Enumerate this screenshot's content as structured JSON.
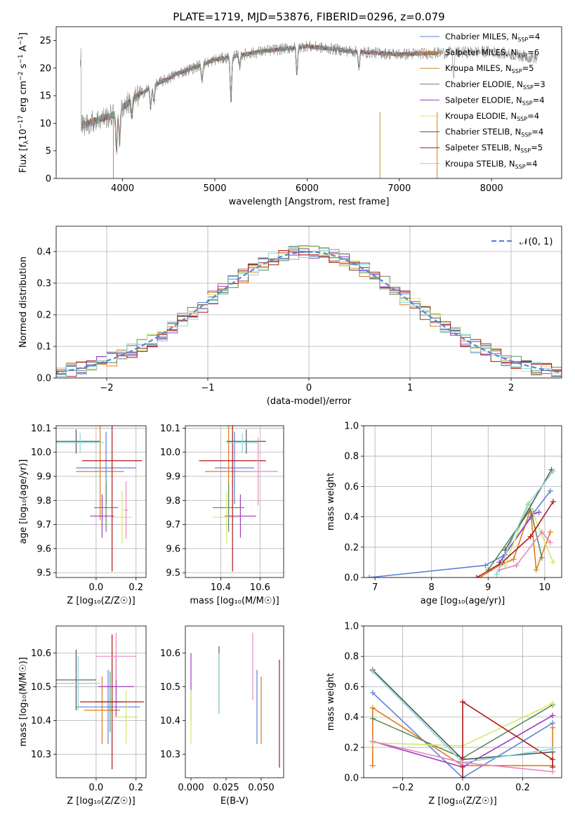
{
  "colors": {
    "Chabrier MILES": "#5b84d6",
    "Salpeter MILES": "#e07b1b",
    "Kroupa MILES": "#c98a2a",
    "Chabrier ELODIE": "#5a8a5a",
    "Salpeter ELODIE": "#9b3cc0",
    "Kroupa ELODIE": "#d6e86b",
    "Chabrier STELIB": "#555555",
    "Salpeter STELIB": "#b01818",
    "Kroupa STELIB": "#86d6d6",
    "pink": "#e888c0",
    "gray": "#808080",
    "normal": "#5b84d6"
  },
  "chart_data": [
    {
      "type": "line",
      "id": "spectrum",
      "title": "PLATE=1719, MJD=53876, FIBERID=0296, z=0.079",
      "xlabel": "wavelength [Angstrom, rest frame]",
      "ylabel_parts": [
        "Flux [f",
        "λ",
        "10",
        "−17",
        " erg cm",
        "−2",
        " s",
        "−1",
        " A",
        "−1",
        "]"
      ],
      "xlim": [
        3280,
        8760
      ],
      "ylim": [
        0,
        27.5
      ],
      "xticks": [
        4000,
        5000,
        6000,
        7000,
        8000
      ],
      "yticks": [
        0,
        5,
        10,
        15,
        20,
        25
      ],
      "legend_position": "right",
      "continuum": [
        [
          3550,
          9.5
        ],
        [
          3700,
          10.5
        ],
        [
          3900,
          11.5
        ],
        [
          4000,
          13
        ],
        [
          4300,
          16.5
        ],
        [
          4600,
          19
        ],
        [
          5000,
          21.5
        ],
        [
          5500,
          23
        ],
        [
          6000,
          24
        ],
        [
          6500,
          23
        ],
        [
          7000,
          22.5
        ],
        [
          7500,
          22.8
        ],
        [
          8000,
          23
        ],
        [
          8500,
          21.8
        ]
      ],
      "legend": [
        {
          "model": "Chabrier MILES",
          "text": "Chabrier MILES, N",
          "sub": "SSP",
          "eq": "=4"
        },
        {
          "model": "Salpeter MILES",
          "text": "Salpeter MILES, N",
          "sub": "SSP",
          "eq": "=6"
        },
        {
          "model": "Kroupa MILES",
          "text": "Kroupa MILES, N",
          "sub": "SSP",
          "eq": "=5"
        },
        {
          "model": "Chabrier ELODIE",
          "text": "Chabrier ELODIE, N",
          "sub": "SSP",
          "eq": "=3"
        },
        {
          "model": "Salpeter ELODIE",
          "text": "Salpeter ELODIE, N",
          "sub": "SSP",
          "eq": "=4"
        },
        {
          "model": "Kroupa ELODIE",
          "text": "Kroupa ELODIE, N",
          "sub": "SSP",
          "eq": "=4"
        },
        {
          "model": "Chabrier STELIB",
          "text": "Chabrier STELIB, N",
          "sub": "SSP",
          "eq": "=4"
        },
        {
          "model": "Salpeter STELIB",
          "text": "Salpeter STELIB, N",
          "sub": "SSP",
          "eq": "=5"
        },
        {
          "model": "Kroupa STELIB",
          "text": "Kroupa STELIB, N",
          "sub": "SSP",
          "eq": "=4"
        }
      ],
      "spikes": [
        {
          "x": 3900,
          "color": "Kroupa MILES"
        },
        {
          "x": 6790,
          "color": "Kroupa MILES"
        },
        {
          "x": 7410,
          "color": "Salpeter MILES"
        }
      ]
    },
    {
      "type": "histogram",
      "id": "residuals",
      "xlabel": "(data-model)/error",
      "ylabel": "Normed distribution",
      "xlim": [
        -2.5,
        2.5
      ],
      "ylim": [
        0,
        0.48
      ],
      "xticks": [
        -2,
        -1,
        0,
        1,
        2
      ],
      "yticks": [
        0.0,
        0.1,
        0.2,
        0.3,
        0.4
      ],
      "grid": true,
      "legend_label": "𝒩(0, 1)",
      "legend_position": "top-right",
      "bin_width": 0.1,
      "bin_start": -2.5,
      "series_models": [
        "Chabrier MILES",
        "Salpeter MILES",
        "Chabrier ELODIE",
        "Salpeter ELODIE",
        "Kroupa ELODIE",
        "Chabrier STELIB",
        "Salpeter STELIB",
        "Kroupa STELIB"
      ]
    },
    {
      "type": "errorbar",
      "id": "age-vs-Z",
      "xlabel": "Z [log₁₀(Z/Z☉)]",
      "ylabel": "age  [log₁₀(age/yr)]",
      "xlim": [
        -0.2,
        0.25
      ],
      "ylim": [
        9.48,
        10.11
      ],
      "xticks": [
        0.0,
        0.2
      ],
      "yticks": [
        9.5,
        9.6,
        9.7,
        9.8,
        9.9,
        10.0,
        10.1
      ],
      "grid": true,
      "points": [
        {
          "c": "Chabrier MILES",
          "x": 0.05,
          "xe": 0.15,
          "y": 9.935,
          "ye": 0.15
        },
        {
          "c": "Salpeter MILES",
          "x": 0.02,
          "xe": 0.12,
          "y": 9.92,
          "ye": 0.2
        },
        {
          "c": "Chabrier ELODIE",
          "x": 0.05,
          "xe": 0.06,
          "y": 9.77,
          "ye": 0.1
        },
        {
          "c": "Salpeter ELODIE",
          "x": 0.03,
          "xe": 0.06,
          "y": 9.735,
          "ye": 0.09
        },
        {
          "c": "Kroupa ELODIE",
          "x": 0.13,
          "xe": 0.05,
          "y": 9.73,
          "ye": 0.11
        },
        {
          "c": "Chabrier STELIB",
          "x": -0.1,
          "xe": 0.12,
          "y": 10.045,
          "ye": 0.05
        },
        {
          "c": "Salpeter STELIB",
          "x": 0.08,
          "xe": 0.15,
          "y": 9.965,
          "ye": 0.46
        },
        {
          "c": "Kroupa STELIB",
          "x": -0.08,
          "xe": 0.12,
          "y": 10.04,
          "ye": 0.04
        },
        {
          "c": "pink",
          "x": 0.15,
          "xe": 0.01,
          "y": 9.76,
          "ye": 0.12
        }
      ]
    },
    {
      "type": "errorbar",
      "id": "age-vs-mass",
      "xlabel": "mass [log₁₀(M/M☉)]",
      "ylabel": "",
      "xlim": [
        10.22,
        10.72
      ],
      "ylim": [
        9.48,
        10.11
      ],
      "xticks": [
        10.4,
        10.6
      ],
      "yticks": [
        9.5,
        9.6,
        9.7,
        9.8,
        9.9,
        10.0,
        10.1
      ],
      "grid": true,
      "points": [
        {
          "c": "Chabrier MILES",
          "x": 10.47,
          "xe": 0.1,
          "y": 9.935,
          "ye": 0.15
        },
        {
          "c": "Salpeter MILES",
          "x": 10.44,
          "xe": 0.12,
          "y": 9.92,
          "ye": 0.2
        },
        {
          "c": "Chabrier ELODIE",
          "x": 10.44,
          "xe": 0.08,
          "y": 9.77,
          "ye": 0.1
        },
        {
          "c": "Salpeter ELODIE",
          "x": 10.5,
          "xe": 0.08,
          "y": 9.735,
          "ye": 0.09
        },
        {
          "c": "Kroupa ELODIE",
          "x": 10.43,
          "xe": 0.07,
          "y": 9.73,
          "ye": 0.11
        },
        {
          "c": "Chabrier STELIB",
          "x": 10.53,
          "xe": 0.1,
          "y": 10.045,
          "ye": 0.05
        },
        {
          "c": "Salpeter STELIB",
          "x": 10.46,
          "xe": 0.17,
          "y": 9.965,
          "ye": 0.46
        },
        {
          "c": "Kroupa STELIB",
          "x": 10.51,
          "xe": 0.08,
          "y": 10.04,
          "ye": 0.04
        },
        {
          "c": "pink",
          "x": 10.59,
          "xe": 0.1,
          "y": 9.92,
          "ye": 0.14
        }
      ]
    },
    {
      "type": "line",
      "id": "mass-weight-vs-age",
      "xlabel": "age  [log₁₀(age/yr)]",
      "ylabel": "mass weight",
      "xlim": [
        6.8,
        10.3
      ],
      "ylim": [
        0,
        1
      ],
      "xticks": [
        7,
        8,
        9,
        10
      ],
      "yticks": [
        0.0,
        0.2,
        0.4,
        0.6,
        0.8,
        1.0
      ],
      "grid": true,
      "series": [
        {
          "c": "Chabrier MILES",
          "x": [
            6.9,
            8.95,
            9.3,
            9.75,
            10.1
          ],
          "y": [
            0.0,
            0.08,
            0.15,
            0.4,
            0.57
          ]
        },
        {
          "c": "Salpeter MILES",
          "x": [
            8.85,
            9.2,
            9.45,
            9.75,
            9.85,
            10.1
          ],
          "y": [
            0.0,
            0.08,
            0.12,
            0.45,
            0.05,
            0.3
          ]
        },
        {
          "c": "Chabrier ELODIE",
          "x": [
            9.0,
            9.75,
            9.95
          ],
          "y": [
            0.05,
            0.45,
            0.13
          ]
        },
        {
          "c": "Salpeter ELODIE",
          "x": [
            9.2,
            9.8,
            9.9
          ],
          "y": [
            0.1,
            0.42,
            0.43
          ]
        },
        {
          "c": "Kroupa ELODIE",
          "x": [
            9.3,
            9.72,
            10.15
          ],
          "y": [
            0.08,
            0.49,
            0.1
          ]
        },
        {
          "c": "Chabrier STELIB",
          "x": [
            9.3,
            10.12
          ],
          "y": [
            0.18,
            0.71
          ]
        },
        {
          "c": "Salpeter STELIB",
          "x": [
            8.8,
            9.25,
            9.75,
            10.15
          ],
          "y": [
            0.0,
            0.1,
            0.27,
            0.5
          ]
        },
        {
          "c": "Kroupa STELIB",
          "x": [
            9.15,
            9.7,
            10.15
          ],
          "y": [
            0.02,
            0.48,
            0.7
          ]
        },
        {
          "c": "pink",
          "x": [
            9.2,
            9.5,
            9.95,
            10.1
          ],
          "y": [
            0.05,
            0.08,
            0.3,
            0.23
          ]
        }
      ]
    },
    {
      "type": "errorbar",
      "id": "mass-vs-Z",
      "xlabel": "Z [log₁₀(Z/Z☉)]",
      "ylabel": "mass [log₁₀(M/M☉)]",
      "xlim": [
        -0.2,
        0.25
      ],
      "ylim": [
        10.23,
        10.68
      ],
      "xticks": [
        0.0,
        0.2
      ],
      "yticks": [
        10.3,
        10.4,
        10.5,
        10.6
      ],
      "grid": true,
      "points": [
        {
          "c": "Chabrier MILES",
          "x": 0.06,
          "xe": 0.16,
          "y": 10.44,
          "ye": 0.11
        },
        {
          "c": "Salpeter MILES",
          "x": 0.03,
          "xe": 0.09,
          "y": 10.43,
          "ye": 0.1
        },
        {
          "c": "Chabrier ELODIE",
          "x": 0.07,
          "xe": 0.07,
          "y": 10.455,
          "ye": 0.09
        },
        {
          "c": "Salpeter ELODIE",
          "x": 0.1,
          "xe": 0.09,
          "y": 10.5,
          "ye": 0.09
        },
        {
          "c": "Kroupa ELODIE",
          "x": 0.15,
          "xe": 0.06,
          "y": 10.41,
          "ye": 0.08
        },
        {
          "c": "Chabrier STELIB",
          "x": -0.1,
          "xe": 0.1,
          "y": 10.52,
          "ye": 0.09
        },
        {
          "c": "Salpeter STELIB",
          "x": 0.08,
          "xe": 0.16,
          "y": 10.455,
          "ye": 0.2
        },
        {
          "c": "Kroupa STELIB",
          "x": -0.09,
          "xe": 0.11,
          "y": 10.51,
          "ye": 0.08
        },
        {
          "c": "pink",
          "x": 0.1,
          "xe": 0.1,
          "y": 10.59,
          "ye": 0.07
        }
      ]
    },
    {
      "type": "errorbar",
      "id": "mass-vs-ebv",
      "xlabel": "E(B-V)",
      "ylabel": "",
      "xlim": [
        -0.004,
        0.066
      ],
      "ylim": [
        10.23,
        10.68
      ],
      "xticks": [
        0.0,
        0.025,
        0.05
      ],
      "yticks": [
        10.3,
        10.4,
        10.5,
        10.6
      ],
      "grid": false,
      "points": [
        {
          "c": "Chabrier MILES",
          "x": 0.047,
          "xe": 0,
          "y": 10.44,
          "ye": 0.11
        },
        {
          "c": "Salpeter MILES",
          "x": 0.05,
          "xe": 0,
          "y": 10.43,
          "ye": 0.1
        },
        {
          "c": "Salpeter ELODIE",
          "x": 0.0,
          "xe": 0,
          "y": 10.5,
          "ye": 0.1
        },
        {
          "c": "Kroupa ELODIE",
          "x": 0.0,
          "xe": 0,
          "y": 10.41,
          "ye": 0.08
        },
        {
          "c": "Chabrier STELIB",
          "x": 0.02,
          "xe": 0,
          "y": 10.52,
          "ye": 0.1
        },
        {
          "c": "Salpeter STELIB",
          "x": 0.063,
          "xe": 0,
          "y": 10.42,
          "ye": 0.16
        },
        {
          "c": "Kroupa STELIB",
          "x": 0.02,
          "xe": 0,
          "y": 10.51,
          "ye": 0.09
        },
        {
          "c": "pink",
          "x": 0.044,
          "xe": 0,
          "y": 10.56,
          "ye": 0.1
        }
      ]
    },
    {
      "type": "line",
      "id": "mass-weight-vs-Z",
      "xlabel": "Z [log₁₀(Z/Z☉)]",
      "ylabel": "mass weight",
      "xlim": [
        -0.33,
        0.33
      ],
      "ylim": [
        0,
        1
      ],
      "xticks": [
        -0.2,
        0.0,
        0.2
      ],
      "yticks": [
        0.0,
        0.2,
        0.4,
        0.6,
        0.8,
        1.0
      ],
      "grid": true,
      "series": [
        {
          "c": "Chabrier MILES",
          "x": [
            -0.3,
            0.0,
            0.3
          ],
          "y": [
            0.56,
            0.0,
            0.36
          ]
        },
        {
          "c": "Salpeter MILES",
          "x": [
            -0.3,
            -0.3,
            0.0,
            0.3,
            0.3
          ],
          "y": [
            0.08,
            0.46,
            0.08,
            0.08,
            0.33
          ]
        },
        {
          "c": "Chabrier ELODIE",
          "x": [
            -0.3,
            0.0,
            0.3
          ],
          "y": [
            0.39,
            0.13,
            0.48
          ]
        },
        {
          "c": "Salpeter ELODIE",
          "x": [
            -0.3,
            0.0,
            0.3
          ],
          "y": [
            0.24,
            0.07,
            0.41
          ]
        },
        {
          "c": "Kroupa ELODIE",
          "x": [
            -0.3,
            0.0,
            0.3
          ],
          "y": [
            0.23,
            0.21,
            0.49
          ]
        },
        {
          "c": "Chabrier STELIB",
          "x": [
            -0.3,
            0.0,
            0.3
          ],
          "y": [
            0.71,
            0.12,
            0.17
          ]
        },
        {
          "c": "Salpeter STELIB",
          "x": [
            0.0,
            0.0,
            0.3,
            0.3
          ],
          "y": [
            0.0,
            0.5,
            0.12,
            0.07
          ]
        },
        {
          "c": "Kroupa STELIB",
          "x": [
            -0.3,
            0.0,
            0.3
          ],
          "y": [
            0.7,
            0.1,
            0.19
          ]
        },
        {
          "c": "pink",
          "x": [
            -0.3,
            0.0,
            0.3
          ],
          "y": [
            0.24,
            0.1,
            0.04
          ]
        }
      ]
    }
  ]
}
